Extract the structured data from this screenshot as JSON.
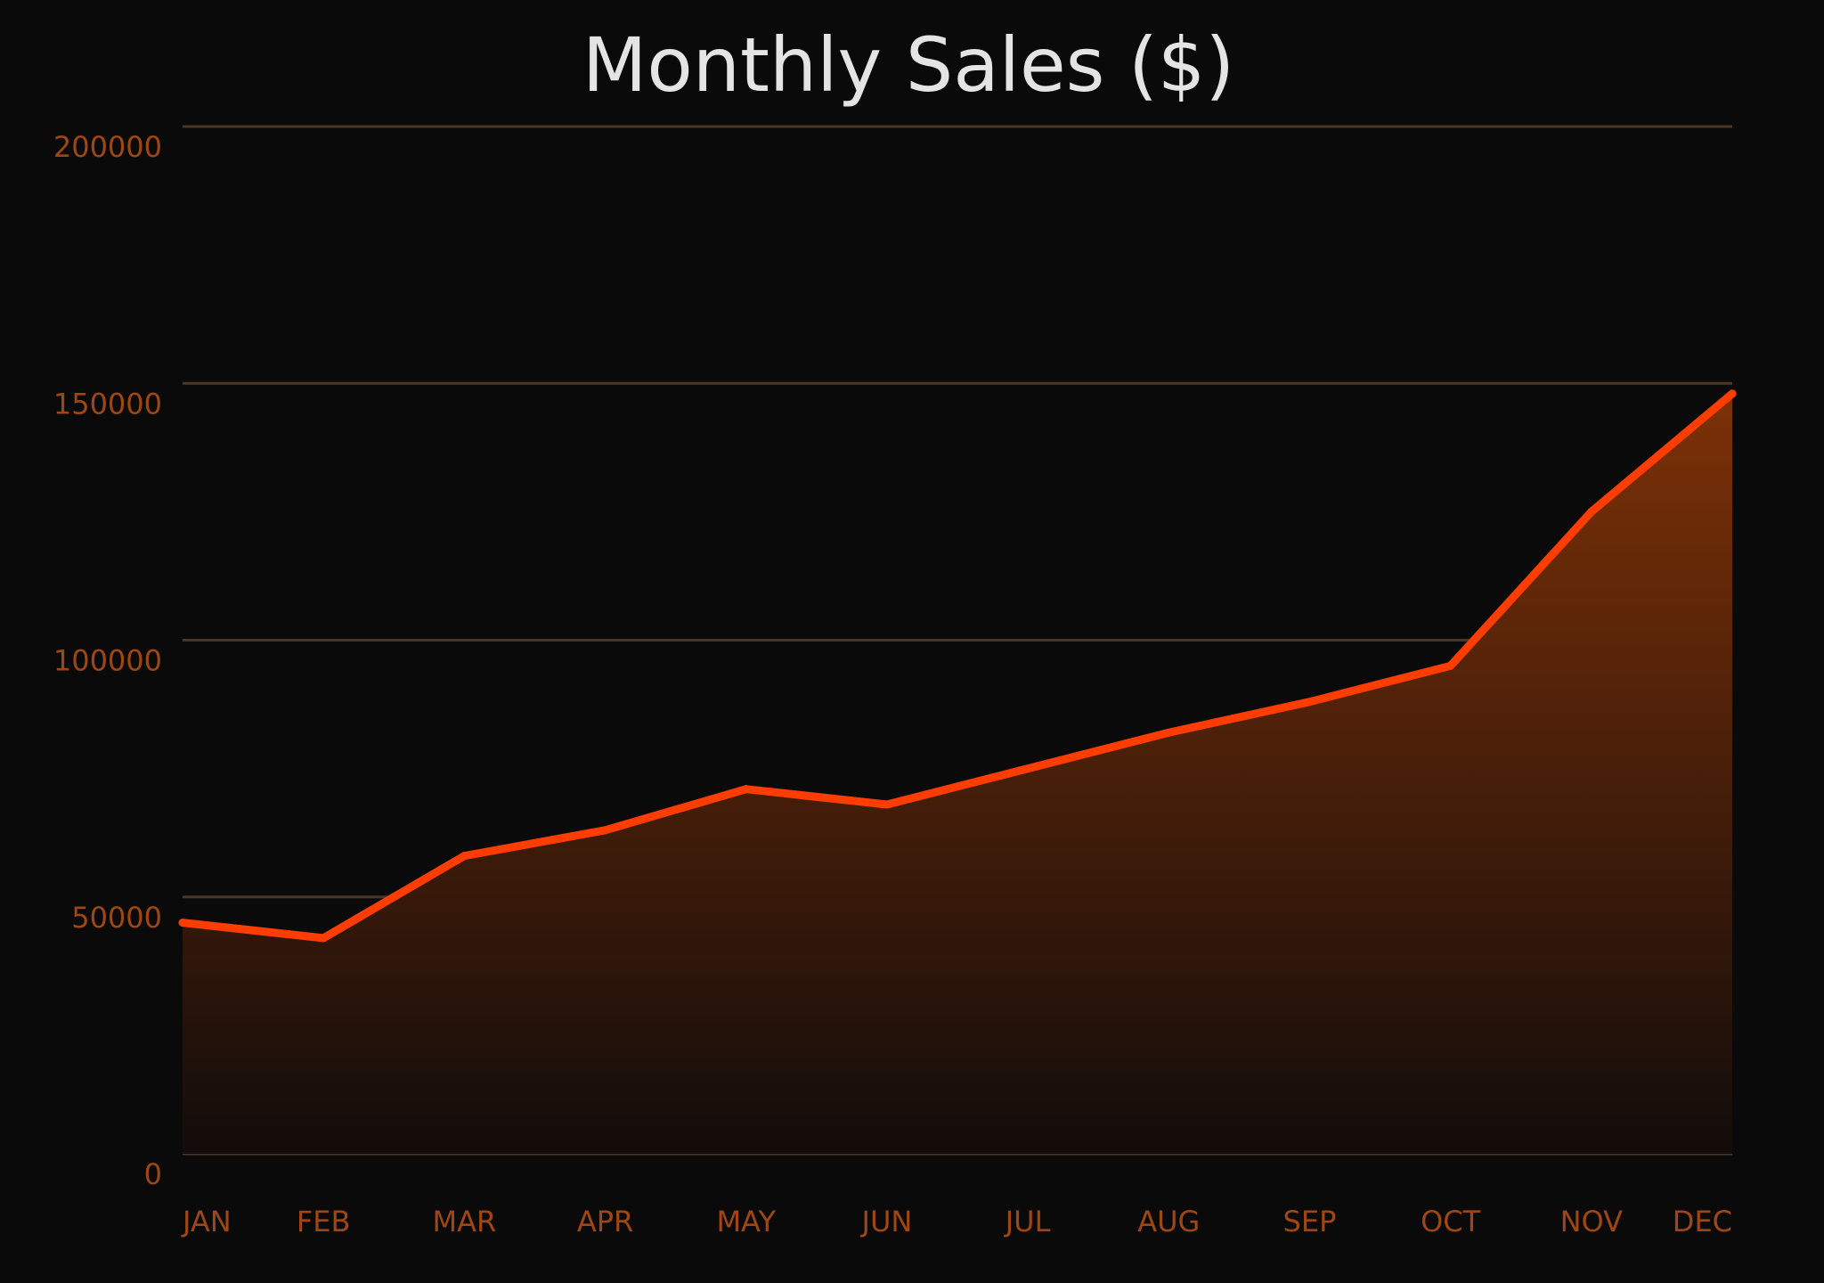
{
  "chart_data": {
    "type": "area",
    "title": "Monthly Sales ($)",
    "xlabel": "",
    "ylabel": "",
    "categories": [
      "JAN",
      "FEB",
      "MAR",
      "APR",
      "MAY",
      "JUN",
      "JUL",
      "AUG",
      "SEP",
      "OCT",
      "NOV",
      "DEC"
    ],
    "values": [
      45000,
      42000,
      58000,
      63000,
      71000,
      68000,
      75000,
      82000,
      88000,
      95000,
      125000,
      148000
    ],
    "ylim": [
      0,
      200000
    ],
    "y_ticks": [
      0,
      50000,
      100000,
      150000,
      200000
    ],
    "y_tick_labels": [
      "0",
      "50000",
      "100000",
      "150000",
      "200000"
    ],
    "grid": true,
    "legend": "none"
  },
  "colors": {
    "background": "#0a0a0b",
    "line": "#ff3d00",
    "fill_top": "#7d3108",
    "fill_bottom": "#120c0a",
    "grid": "#4a3626",
    "tick_label": "#9e4614",
    "title": "#e4e4e4"
  }
}
